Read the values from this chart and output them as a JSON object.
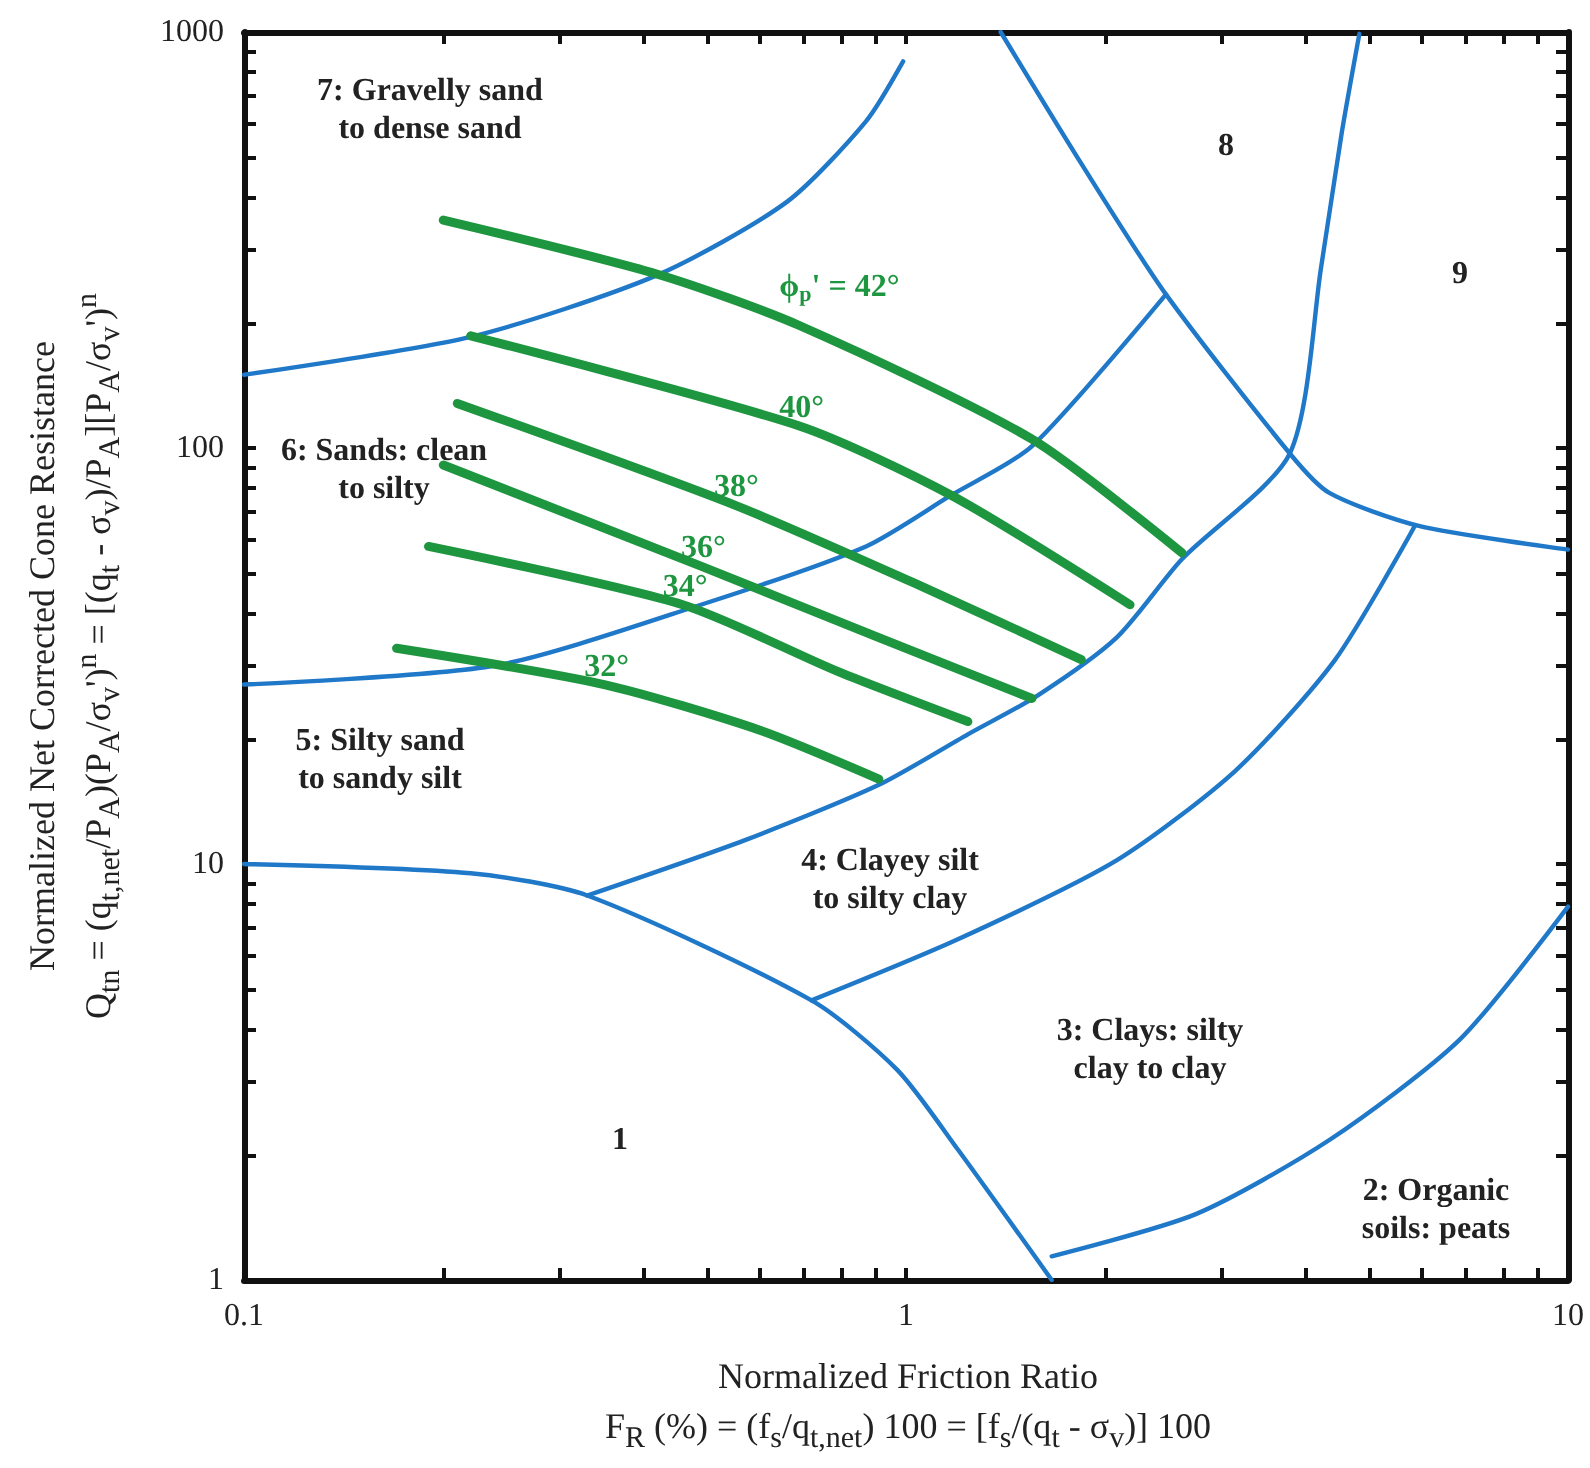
{
  "chart_data": {
    "type": "line",
    "xlabel": "Normalized Friction Ratio\nF$_{R}$ (%) = (f$_{s}$/q$_{t,net}$) 100 = [f$_{s}$/(q$_{t}$ - σ$_{v}$)] 100",
    "ylabel": "Normalized Net Corrected Cone Resistance\nQ$_{tn}$ = (q$_{t,net}$/P$_{A}$)(P$_{A}$/σ$_{v}$')$^{n}$ = [(q$_{t}$ - σ$_{v}$)/P$_{A}$][P$_{A}$/σ$_{v}$')$^{n}$",
    "log": "xy",
    "xlim": [
      0.1,
      10
    ],
    "ylim": [
      1,
      1000
    ],
    "xticks": [
      0.1,
      {
        "value": 0.2,
        "label": null
      },
      {
        "value": 0.3,
        "label": null
      },
      {
        "value": 0.4,
        "label": null
      },
      {
        "value": 0.5,
        "label": null
      },
      {
        "value": 0.6,
        "label": null
      },
      {
        "value": 0.7,
        "label": null
      },
      {
        "value": 0.8,
        "label": null
      },
      {
        "value": 0.9,
        "label": null
      },
      1,
      {
        "value": 2,
        "label": null
      },
      {
        "value": 3,
        "label": null
      },
      {
        "value": 4,
        "label": null
      },
      {
        "value": 5,
        "label": null
      },
      {
        "value": 6,
        "label": null
      },
      {
        "value": 7,
        "label": null
      },
      {
        "value": 8,
        "label": null
      },
      {
        "value": 9,
        "label": null
      },
      10
    ],
    "yticks": [
      1,
      {
        "value": 2,
        "label": null
      },
      {
        "value": 3,
        "label": null
      },
      {
        "value": 4,
        "label": null
      },
      {
        "value": 5,
        "label": null
      },
      {
        "value": 6,
        "label": null
      },
      {
        "value": 7,
        "label": null
      },
      {
        "value": 8,
        "label": null
      },
      {
        "value": 9,
        "label": null
      },
      10,
      {
        "value": 20,
        "label": null
      },
      {
        "value": 30,
        "label": null
      },
      {
        "value": 40,
        "label": null
      },
      {
        "value": 50,
        "label": null
      },
      {
        "value": 60,
        "label": null
      },
      {
        "value": 70,
        "label": null
      },
      {
        "value": 80,
        "label": null
      },
      {
        "value": 90,
        "label": null
      },
      100,
      {
        "value": 200,
        "label": null
      },
      {
        "value": 300,
        "label": null
      },
      {
        "value": 400,
        "label": null
      },
      {
        "value": 500,
        "label": null
      },
      {
        "value": 600,
        "label": null
      },
      {
        "value": 700,
        "label": null
      },
      {
        "value": 800,
        "label": null
      },
      {
        "value": 900,
        "label": null
      },
      1000
    ],
    "grid": false,
    "legend": false,
    "marker": "none",
    "series": [
      {
        "color": "#1f78c8",
        "x": [
          0.1,
          0.22,
          0.42,
          0.66,
          0.87,
          0.99
        ],
        "values": [
          150,
          185,
          260,
          390,
          610,
          850
        ]
      },
      {
        "color": "#1f78c8",
        "x": [
          0.1,
          0.24,
          0.49,
          0.87,
          1.17,
          1.55,
          2.47
        ],
        "values": [
          27,
          30,
          42,
          58,
          77,
          101,
          234
        ]
      },
      {
        "color": "#1f78c8",
        "x": [
          0.33,
          0.57,
          0.91,
          1.24,
          1.58,
          2.08,
          2.61,
          3.8,
          4.24,
          4.55,
          4.84
        ],
        "values": [
          8.4,
          11.4,
          15.5,
          20.5,
          25.4,
          35,
          54,
          97,
          274,
          570,
          990
        ]
      },
      {
        "color": "#1f78c8",
        "x": [
          0.72,
          1.2,
          2.08,
          3.15,
          4.45,
          5.87
        ],
        "values": [
          4.7,
          6.6,
          10.2,
          16.8,
          31,
          65
        ]
      },
      {
        "color": "#1f78c8",
        "x": [
          0.1,
          0.22,
          0.33,
          0.72,
          0.97,
          1.2,
          1.66
        ],
        "values": [
          10,
          9.5,
          8.4,
          4.7,
          3.2,
          2.05,
          1
        ]
      },
      {
        "color": "#1f78c8",
        "x": [
          1.66,
          2.74,
          4.36,
          6.88,
          10
        ],
        "values": [
          1.14,
          1.44,
          2.17,
          3.8,
          7.9
        ]
      },
      {
        "color": "#1f78c8",
        "x": [
          1.39,
          1.85,
          2.47,
          3.8,
          4.36,
          5.95,
          10
        ],
        "values": [
          1000,
          476,
          234,
          97,
          78,
          65,
          57
        ]
      },
      {
        "name": "ϕ$_{p}$' = 42°",
        "color": "#1e9640",
        "x": [
          0.2,
          0.42,
          0.69,
          1.55,
          2.61
        ],
        "values": [
          353,
          262,
          197,
          105,
          56
        ]
      },
      {
        "name": "40°",
        "color": "#1e9640",
        "x": [
          0.22,
          0.69,
          1.17,
          2.18
        ],
        "values": [
          186,
          113,
          77,
          42
        ]
      },
      {
        "name": "38°",
        "color": "#1e9640",
        "x": [
          0.21,
          0.55,
          1.04,
          1.84
        ],
        "values": [
          128,
          73,
          47,
          31
        ]
      },
      {
        "name": "36°",
        "color": "#1e9640",
        "x": [
          0.2,
          0.49,
          0.91,
          1.55
        ],
        "values": [
          91,
          52,
          35,
          25
        ]
      },
      {
        "name": "34°",
        "color": "#1e9640",
        "x": [
          0.19,
          0.46,
          0.79,
          1.24
        ],
        "values": [
          58,
          42,
          29,
          22
        ]
      },
      {
        "name": "32°",
        "color": "#1e9640",
        "x": [
          0.17,
          0.35,
          0.6,
          0.91
        ],
        "values": [
          33,
          27,
          21,
          16
        ]
      }
    ],
    "annotations": [
      "7: Gravelly sand\nto dense sand",
      "8",
      "9",
      "6: Sands: clean\nto silty",
      "5: Silty sand\nto sandy silt",
      "4: Clayey silt\nto silty clay",
      "3: Clays: silty\nclay to clay",
      "2: Organic\nsoils: peats",
      "1"
    ]
  }
}
